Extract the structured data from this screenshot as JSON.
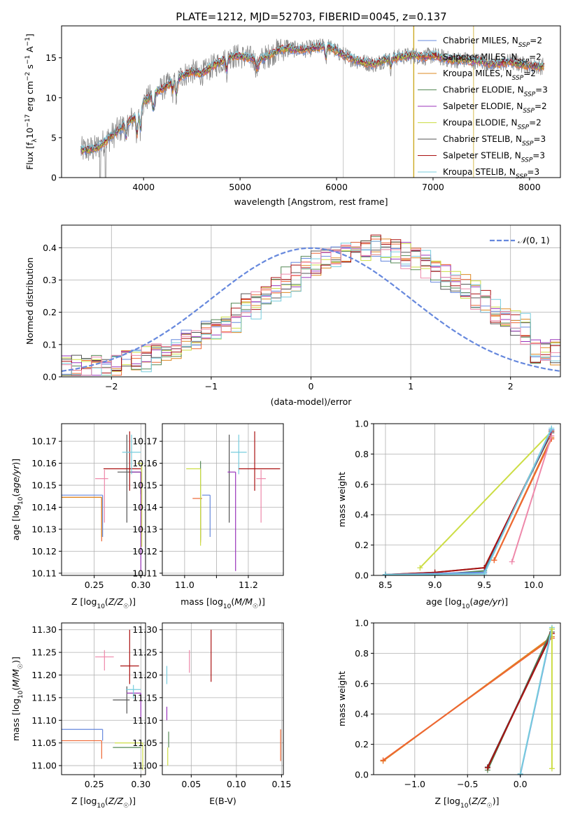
{
  "figure": {
    "title": "PLATE=1212, MJD=52703, FIBERID=0045, z=0.137"
  },
  "colors": {
    "Chabrier MILES": "#6688dd",
    "Salpeter MILES": "#ee6633",
    "Kroupa MILES": "#dd8822",
    "Chabrier ELODIE": "#558855",
    "Salpeter ELODIE": "#9933bb",
    "Kroupa ELODIE": "#ccdd44",
    "Chabrier STELIB": "#555555",
    "Salpeter STELIB": "#aa1111",
    "Kroupa STELIB": "#77ccdd",
    "extra": "#ee88aa",
    "gaussian": "#6688dd",
    "observed": "#888888"
  },
  "chart_data": [
    {
      "id": "spectrum",
      "type": "line",
      "xlabel": "wavelength [Angstrom, rest frame]",
      "xlim": [
        3150,
        8320
      ],
      "ylim": [
        0,
        19
      ],
      "xticks": [
        4000,
        5000,
        6000,
        7000,
        8000
      ],
      "yticks": [
        0,
        5,
        10,
        15
      ],
      "grid": false,
      "legend": "top-right",
      "series_names": [
        "Chabrier MILES",
        "Salpeter MILES",
        "Kroupa MILES",
        "Chabrier ELODIE",
        "Salpeter ELODIE",
        "Kroupa ELODIE",
        "Chabrier STELIB",
        "Salpeter STELIB",
        "Kroupa STELIB"
      ],
      "legend_nssp": [
        "2",
        "2",
        "2",
        "3",
        "2",
        "2",
        "3",
        "3",
        "3"
      ],
      "shape_x": [
        3350,
        3500,
        3600,
        3700,
        3800,
        3900,
        4000,
        4100,
        4200,
        4300,
        4400,
        4500,
        4600,
        4700,
        4800,
        4900,
        5000,
        5100,
        5200,
        5300,
        5400,
        5500,
        5600,
        5700,
        5800,
        5900,
        6000,
        6100,
        6200,
        6300,
        6400,
        6500,
        6600,
        6700,
        6800,
        6900,
        7000,
        7100,
        7200,
        7300,
        7400,
        7500,
        7600,
        7700,
        7800,
        7900,
        8000,
        8100,
        8150
      ],
      "shape_y": [
        3.4,
        3.6,
        4.5,
        5.5,
        6.5,
        7.5,
        9.5,
        10.5,
        11.2,
        12.0,
        12.8,
        13.3,
        13.0,
        13.8,
        14.5,
        15.2,
        15.2,
        15.0,
        14.7,
        15.3,
        16.0,
        16.2,
        16.0,
        16.1,
        16.3,
        16.5,
        15.8,
        15.2,
        14.7,
        14.4,
        14.2,
        14.8,
        15.0,
        15.2,
        15.3,
        15.1,
        15.3,
        15.0,
        14.7,
        14.8,
        14.6,
        14.6,
        14.2,
        14.3,
        14.5,
        14.2,
        14.0,
        13.9,
        14.0
      ]
    },
    {
      "id": "residuals",
      "type": "histogram",
      "xlabel": "(data-model)/error",
      "ylabel": "Normed distribution",
      "xlim": [
        -2.5,
        2.5
      ],
      "ylim": [
        0,
        0.47
      ],
      "xticks": [
        -2,
        -1,
        0,
        1,
        2
      ],
      "yticks": [
        0.0,
        0.1,
        0.2,
        0.3,
        0.4
      ],
      "grid": true,
      "legend": "top-right",
      "gaussian_label": "N(0,1)",
      "bin_width": 0.1,
      "bin_start": -2.5,
      "mean": 0.6,
      "sigma": 1.05
    },
    {
      "id": "age-vs-Z",
      "type": "errorbar",
      "xlabel": "Z [log10(Z/Z☉)]",
      "ylabel": "age  [log10(age/yr)]",
      "xlim": [
        0.215,
        0.305
      ],
      "ylim": [
        10.109,
        10.178
      ],
      "xticks": [
        0.25,
        0.3
      ],
      "xticklabels": [
        "0.25",
        "0.30"
      ],
      "yticks": [
        10.11,
        10.12,
        10.13,
        10.14,
        10.15,
        10.16,
        10.17
      ],
      "points": [
        {
          "c": "Chabrier MILES",
          "x": 0.259,
          "xe": [
            0.044,
            0.0
          ],
          "y": 10.1455,
          "ye": [
            0.019,
            0.0
          ]
        },
        {
          "c": "Salpeter MILES",
          "x": 0.258,
          "xe": [
            0.045,
            0.0
          ],
          "y": 10.1445,
          "ye": [
            0.02,
            0.0
          ]
        },
        {
          "c": "Kroupa MILES",
          "x": 0.258,
          "xe": [
            0.045,
            0.0
          ],
          "y": 10.1445,
          "ye": [
            0.018,
            0.0
          ]
        },
        {
          "c": "extra",
          "x": 0.261,
          "xe": [
            0.01,
            0.004
          ],
          "y": 10.153,
          "ye": [
            0.02,
            0.004
          ]
        },
        {
          "c": "Chabrier STELIB",
          "x": 0.285,
          "xe": [
            0.01,
            0.015
          ],
          "y": 10.156,
          "ye": [
            0.023,
            0.017
          ]
        },
        {
          "c": "Salpeter STELIB",
          "x": 0.288,
          "xe": [
            0.028,
            0.012
          ],
          "y": 10.1575,
          "ye": [
            0.01,
            0.017
          ]
        },
        {
          "c": "Kroupa STELIB",
          "x": 0.29,
          "xe": [
            0.01,
            0.01
          ],
          "y": 10.165,
          "ye": [
            0.01,
            0.008
          ]
        },
        {
          "c": "Chabrier ELODIE",
          "x": 0.3,
          "xe": [
            0.01,
            0.0
          ],
          "y": 10.156,
          "ye": [
            0.01,
            0.0
          ]
        },
        {
          "c": "Salpeter ELODIE",
          "x": 0.3,
          "xe": [
            0.01,
            0.0
          ],
          "y": 10.156,
          "ye": [
            0.045,
            0.0
          ]
        },
        {
          "c": "Kroupa ELODIE",
          "x": 0.301,
          "xe": [
            0.005,
            0.0
          ],
          "y": 10.16,
          "ye": [
            0.038,
            0.0
          ]
        }
      ]
    },
    {
      "id": "age-vs-mass",
      "type": "errorbar",
      "xlabel": "mass [log10(M/M☉)]",
      "xlim": [
        10.93,
        11.31
      ],
      "ylim": [
        10.109,
        10.178
      ],
      "xticks": [
        11.0,
        11.1,
        11.2
      ],
      "xticklabels": [
        "11.0",
        "",
        "11.2"
      ],
      "yticks": [
        10.11,
        10.12,
        10.13,
        10.14,
        10.15,
        10.16,
        10.17
      ],
      "points": [
        {
          "c": "Chabrier MILES",
          "x": 11.08,
          "xe": [
            0.025,
            0.0
          ],
          "y": 10.1455,
          "ye": [
            0.019,
            0.0
          ]
        },
        {
          "c": "Salpeter MILES",
          "x": 11.05,
          "xe": [
            0.025,
            0.005
          ],
          "y": 10.144,
          "ye": [
            0.02,
            0.0
          ]
        },
        {
          "c": "Kroupa MILES",
          "x": 11.05,
          "xe": [
            0.0,
            0.0
          ],
          "y": 10.144,
          "ye": [
            0.018,
            0.0
          ]
        },
        {
          "c": "Chabrier ELODIE",
          "x": 11.05,
          "xe": [
            0.0,
            0.0
          ],
          "y": 10.155,
          "ye": [
            0.03,
            0.006
          ]
        },
        {
          "c": "Kroupa ELODIE",
          "x": 11.05,
          "xe": [
            0.045,
            0.0
          ],
          "y": 10.1575,
          "ye": [
            0.035,
            0.0
          ]
        },
        {
          "c": "Chabrier STELIB",
          "x": 11.14,
          "xe": [
            0.0,
            0.0
          ],
          "y": 10.156,
          "ye": [
            0.023,
            0.017
          ]
        },
        {
          "c": "Salpeter ELODIE",
          "x": 11.16,
          "xe": [
            0.025,
            0.0
          ],
          "y": 10.156,
          "ye": [
            0.045,
            0.0
          ]
        },
        {
          "c": "Kroupa STELIB",
          "x": 11.17,
          "xe": [
            0.025,
            0.025
          ],
          "y": 10.165,
          "ye": [
            0.01,
            0.008
          ]
        },
        {
          "c": "Salpeter STELIB",
          "x": 11.22,
          "xe": [
            0.05,
            0.08
          ],
          "y": 10.1575,
          "ye": [
            0.01,
            0.017
          ]
        },
        {
          "c": "extra",
          "x": 11.24,
          "xe": [
            0.015,
            0.015
          ],
          "y": 10.153,
          "ye": [
            0.02,
            0.004
          ]
        }
      ]
    },
    {
      "id": "weight-vs-age",
      "type": "line",
      "xlabel": "age  [log10(age/yr)]",
      "ylabel": "mass weight",
      "xlim": [
        8.38,
        10.27
      ],
      "ylim": [
        0,
        1.0
      ],
      "xticks": [
        8.5,
        9.0,
        9.5,
        10.0
      ],
      "xticklabels": [
        "8.5",
        "9.0",
        "9.5",
        "10.0"
      ],
      "yticks": [
        0.0,
        0.2,
        0.4,
        0.6,
        0.8,
        1.0
      ],
      "grid": true,
      "lines": [
        {
          "c": "Kroupa ELODIE",
          "x": [
            8.85,
            10.18
          ],
          "y": [
            0.05,
            0.95
          ]
        },
        {
          "c": "Chabrier ELODIE",
          "x": [
            8.5,
            9.0,
            9.5,
            10.18
          ],
          "y": [
            0.005,
            0.005,
            0.03,
            0.96
          ]
        },
        {
          "c": "Chabrier STELIB",
          "x": [
            8.5,
            9.0,
            9.5,
            10.18
          ],
          "y": [
            0.005,
            0.02,
            0.05,
            0.94
          ]
        },
        {
          "c": "Salpeter STELIB",
          "x": [
            8.5,
            9.0,
            9.5,
            10.18
          ],
          "y": [
            0.005,
            0.02,
            0.05,
            0.95
          ]
        },
        {
          "c": "Chabrier MILES",
          "x": [
            8.5,
            9.5,
            10.18
          ],
          "y": [
            0.005,
            0.02,
            0.96
          ]
        },
        {
          "c": "Kroupa STELIB",
          "x": [
            8.5,
            9.5,
            10.18
          ],
          "y": [
            0.005,
            0.01,
            0.97
          ]
        },
        {
          "c": "Kroupa MILES",
          "x": [
            9.6,
            10.18
          ],
          "y": [
            0.1,
            0.91
          ]
        },
        {
          "c": "Salpeter MILES",
          "x": [
            9.6,
            10.18
          ],
          "y": [
            0.1,
            0.9
          ]
        },
        {
          "c": "extra",
          "x": [
            9.78,
            10.18
          ],
          "y": [
            0.09,
            0.92
          ]
        }
      ]
    },
    {
      "id": "mass-vs-Z",
      "type": "errorbar",
      "xlabel": "Z [log10(Z/Z☉)]",
      "ylabel": "mass [log10(M/M☉)]",
      "xlim": [
        0.215,
        0.305
      ],
      "ylim": [
        10.98,
        11.315
      ],
      "xticks": [
        0.25,
        0.3
      ],
      "xticklabels": [
        "0.25",
        "0.30"
      ],
      "yticks": [
        11.0,
        11.05,
        11.1,
        11.15,
        11.2,
        11.25,
        11.3
      ],
      "points": [
        {
          "c": "Chabrier MILES",
          "x": 0.259,
          "xe": [
            0.044,
            0.0
          ],
          "y": 11.08,
          "ye": [
            0.025,
            0.0
          ]
        },
        {
          "c": "Salpeter MILES",
          "x": 0.258,
          "xe": [
            0.045,
            0.0
          ],
          "y": 11.055,
          "ye": [
            0.04,
            0.0
          ]
        },
        {
          "c": "extra",
          "x": 0.261,
          "xe": [
            0.01,
            0.01
          ],
          "y": 11.24,
          "ye": [
            0.03,
            0.015
          ]
        },
        {
          "c": "Kroupa ELODIE",
          "x": 0.302,
          "xe": [
            0.03,
            0.0
          ],
          "y": 11.05,
          "ye": [
            0.06,
            0.0
          ]
        },
        {
          "c": "Chabrier ELODIE",
          "x": 0.3,
          "xe": [
            0.03,
            0.0
          ],
          "y": 11.04,
          "ye": [
            0.0,
            0.0
          ]
        },
        {
          "c": "Chabrier STELIB",
          "x": 0.285,
          "xe": [
            0.015,
            0.003
          ],
          "y": 11.145,
          "ye": [
            0.03,
            0.03
          ]
        },
        {
          "c": "Salpeter ELODIE",
          "x": 0.3,
          "xe": [
            0.015,
            0.0
          ],
          "y": 11.16,
          "ye": [
            0.06,
            0.0
          ]
        },
        {
          "c": "Kroupa STELIB",
          "x": 0.292,
          "xe": [
            0.008,
            0.008
          ],
          "y": 11.168,
          "ye": [
            0.02,
            0.01
          ]
        },
        {
          "c": "Salpeter STELIB",
          "x": 0.288,
          "xe": [
            0.01,
            0.01
          ],
          "y": 11.22,
          "ye": [
            0.04,
            0.08
          ]
        }
      ]
    },
    {
      "id": "mass-vs-ebv",
      "type": "errorbar",
      "xlabel": "E(B-V)",
      "xlim": [
        0.018,
        0.152
      ],
      "ylim": [
        10.98,
        11.315
      ],
      "xticks": [
        0.05,
        0.1,
        0.15
      ],
      "xticklabels": [
        "0.05",
        "0.10",
        "0.15"
      ],
      "yticks": [
        11.0,
        11.05,
        11.1,
        11.15,
        11.2,
        11.25,
        11.3
      ],
      "points": [
        {
          "c": "Kroupa STELIB",
          "x": 0.023,
          "xe": [
            0.0,
            0.0
          ],
          "y": 11.2,
          "ye": [
            0.02,
            0.02
          ]
        },
        {
          "c": "Salpeter ELODIE",
          "x": 0.023,
          "xe": [
            0.0,
            0.0
          ],
          "y": 11.115,
          "ye": [
            0.015,
            0.015
          ]
        },
        {
          "c": "Chabrier ELODIE",
          "x": 0.025,
          "xe": [
            0.0,
            0.0
          ],
          "y": 11.06,
          "ye": [
            0.02,
            0.015
          ]
        },
        {
          "c": "Kroupa ELODIE",
          "x": 0.024,
          "xe": [
            0.0,
            0.0
          ],
          "y": 11.02,
          "ye": [
            0.02,
            0.02
          ]
        },
        {
          "c": "extra",
          "x": 0.048,
          "xe": [
            0.0,
            0.0
          ],
          "y": 11.23,
          "ye": [
            0.025,
            0.025
          ]
        },
        {
          "c": "Salpeter STELIB",
          "x": 0.072,
          "xe": [
            0.0,
            0.0
          ],
          "y": 11.245,
          "ye": [
            0.06,
            0.055
          ]
        },
        {
          "c": "Salpeter MILES",
          "x": 0.149,
          "xe": [
            0.0,
            0.0
          ],
          "y": 11.045,
          "ye": [
            0.035,
            0.035
          ]
        }
      ]
    },
    {
      "id": "weight-vs-Z",
      "type": "line",
      "xlabel": "Z [log10(Z/Z☉)]",
      "ylabel": "mass weight",
      "xlim": [
        -1.39,
        0.38
      ],
      "ylim": [
        0,
        1.0
      ],
      "xticks": [
        -1.0,
        -0.5,
        0.0
      ],
      "xticklabels": [
        "−1.0",
        "−0.5",
        "0.0"
      ],
      "yticks": [
        0.0,
        0.2,
        0.4,
        0.6,
        0.8,
        1.0
      ],
      "grid": true,
      "lines": [
        {
          "c": "Kroupa MILES",
          "x": [
            -1.3,
            0.3
          ],
          "y": [
            0.09,
            0.91
          ]
        },
        {
          "c": "Salpeter MILES",
          "x": [
            -1.3,
            0.3
          ],
          "y": [
            0.095,
            0.9
          ]
        },
        {
          "c": "Chabrier ELODIE",
          "x": [
            -0.31,
            0.3
          ],
          "y": [
            0.03,
            0.96
          ]
        },
        {
          "c": "Chabrier STELIB",
          "x": [
            -0.31,
            0.3
          ],
          "y": [
            0.05,
            0.94
          ]
        },
        {
          "c": "Salpeter STELIB",
          "x": [
            -0.31,
            0.3
          ],
          "y": [
            0.045,
            0.93
          ]
        },
        {
          "c": "Chabrier MILES",
          "x": [
            0.0,
            0.3
          ],
          "y": [
            0.0,
            0.96
          ]
        },
        {
          "c": "Kroupa STELIB",
          "x": [
            0.0,
            0.3
          ],
          "y": [
            0.005,
            0.97
          ]
        },
        {
          "c": "Kroupa ELODIE",
          "x": [
            0.3,
            0.3
          ],
          "y": [
            0.04,
            0.96
          ]
        }
      ]
    }
  ]
}
